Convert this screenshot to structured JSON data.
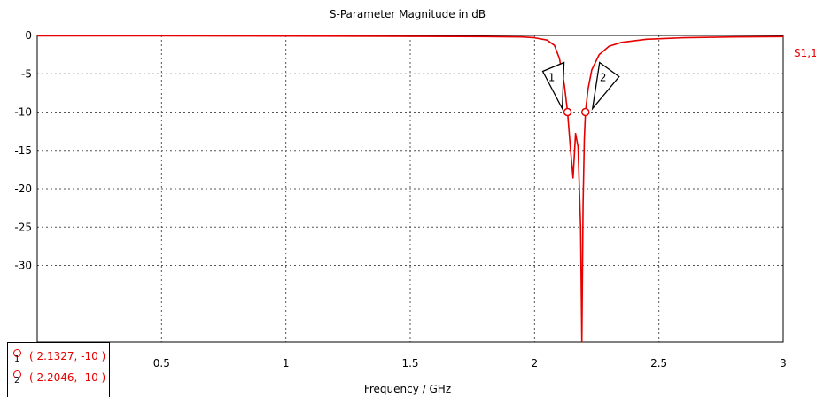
{
  "chart_data": {
    "type": "line",
    "title": "S-Parameter Magnitude in dB",
    "xlabel": "Frequency / GHz",
    "ylabel": "",
    "xlim": [
      0,
      3
    ],
    "ylim": [
      -40,
      0
    ],
    "x_ticks": [
      "0.5",
      "1",
      "1.5",
      "2",
      "2.5",
      "3"
    ],
    "x_tick_values": [
      0.5,
      1,
      1.5,
      2,
      2.5,
      3
    ],
    "y_ticks": [
      "0",
      "-5",
      "-10",
      "-15",
      "-20",
      "-25",
      "-30"
    ],
    "y_tick_values": [
      0,
      -5,
      -10,
      -15,
      -20,
      -25,
      -30
    ],
    "grid": true,
    "series": [
      {
        "name": "S1,1",
        "color": "#e60000",
        "x": [
          0,
          0.5,
          1.0,
          1.4,
          1.8,
          1.95,
          2.0,
          2.05,
          2.08,
          2.1,
          2.12,
          2.1327,
          2.145,
          2.155,
          2.165,
          2.175,
          2.185,
          2.19,
          2.195,
          2.2,
          2.2046,
          2.215,
          2.23,
          2.26,
          2.3,
          2.35,
          2.45,
          2.6,
          2.8,
          3.0
        ],
        "y": [
          -0.05,
          -0.05,
          -0.08,
          -0.1,
          -0.15,
          -0.2,
          -0.3,
          -0.6,
          -1.3,
          -3.0,
          -6.5,
          -10,
          -15.0,
          -18.6,
          -12.8,
          -14.5,
          -25.0,
          -40.0,
          -22.0,
          -13.5,
          -10,
          -7.0,
          -4.5,
          -2.5,
          -1.4,
          -0.9,
          -0.5,
          -0.3,
          -0.2,
          -0.15
        ]
      }
    ],
    "markers": [
      {
        "id": "1",
        "x": 2.1327,
        "y": -10,
        "label": "( 2.1327, -10 )"
      },
      {
        "id": "2",
        "x": 2.2046,
        "y": -10,
        "label": "( 2.2046, -10 )"
      }
    ]
  }
}
